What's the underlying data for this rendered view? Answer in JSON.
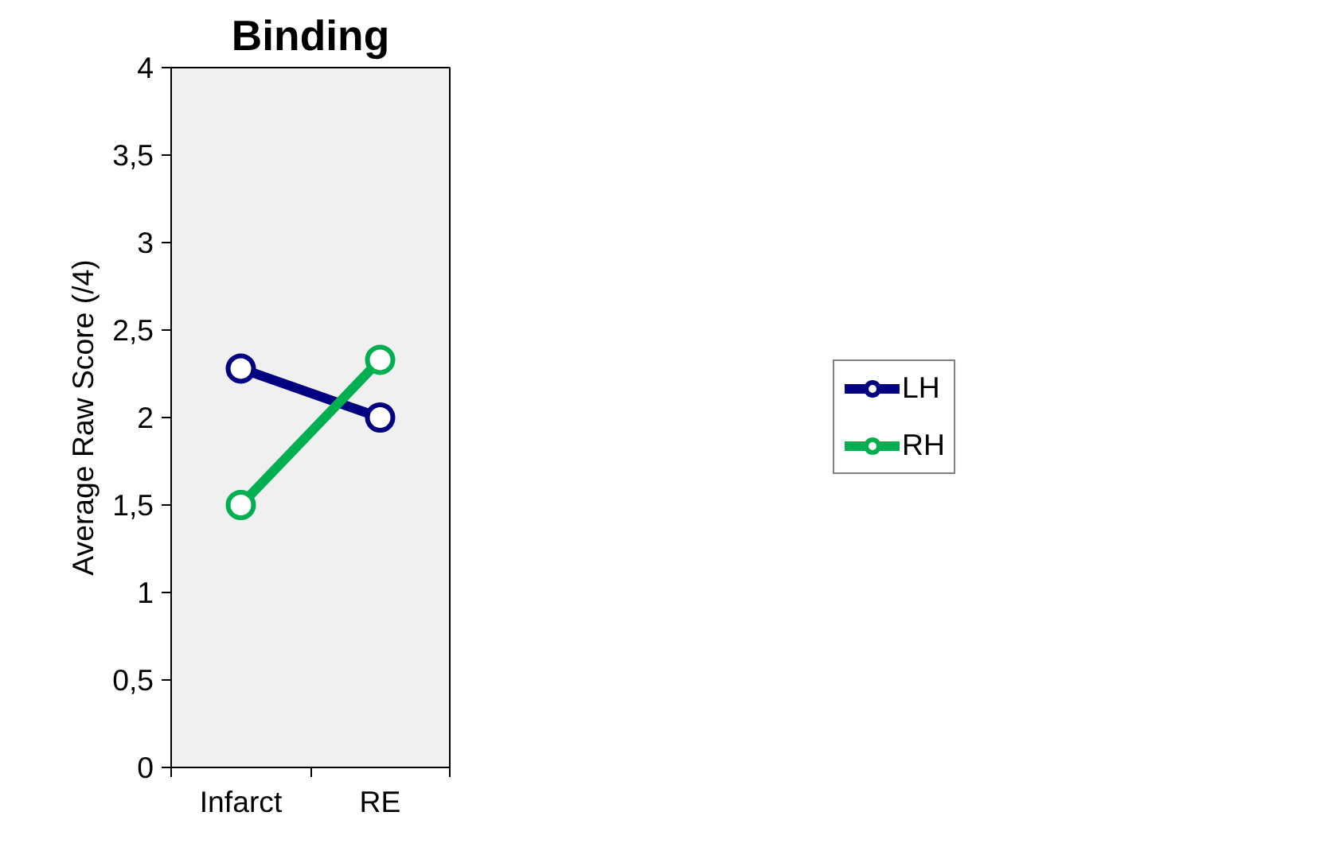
{
  "chart_data": {
    "type": "line",
    "title": "Binding",
    "ylabel": "Average Raw Score (/4)",
    "categories": [
      "Infarct",
      "RE"
    ],
    "series": [
      {
        "name": "LH",
        "color": "#000080",
        "values": [
          2.28,
          2.0
        ]
      },
      {
        "name": "RH",
        "color": "#00b050",
        "values": [
          1.5,
          2.33
        ]
      }
    ],
    "ylim": [
      0,
      4
    ],
    "yticks": [
      0,
      {
        "value": 0.5,
        "label": "0,5"
      },
      1,
      {
        "value": 1.5,
        "label": "1,5"
      },
      2,
      {
        "value": 2.5,
        "label": "2,5"
      },
      3,
      {
        "value": 3.5,
        "label": "3,5"
      },
      4
    ],
    "grid": false,
    "legend": "right",
    "marker": "circle",
    "line_style": "solid"
  }
}
